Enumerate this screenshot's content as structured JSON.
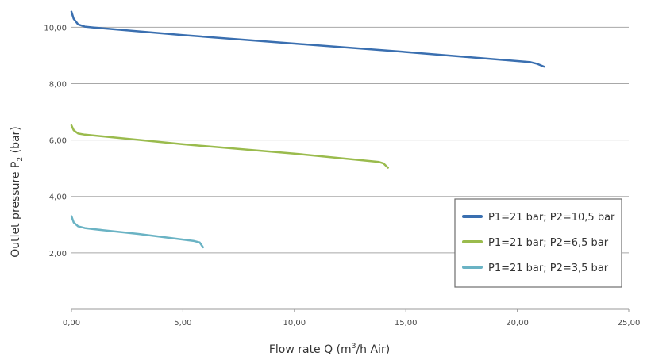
{
  "chart_data": {
    "type": "line",
    "title": "",
    "xlabel": {
      "main": "Flow rate Q (m",
      "sup": "3",
      "rest": "/h Air)"
    },
    "ylabel": {
      "main": "Outlet pressure P",
      "sub": "2",
      "rest": " (bar)"
    },
    "xlim": [
      0,
      25
    ],
    "ylim": [
      0,
      10.6
    ],
    "x_ticks": [
      0,
      5,
      10,
      15,
      20,
      25
    ],
    "x_tick_labels": [
      "0,00",
      "5,00",
      "10,00",
      "15,00",
      "20,00",
      "25,00"
    ],
    "y_ticks": [
      2,
      4,
      6,
      8,
      10
    ],
    "y_tick_labels": [
      "2,00",
      "4,00",
      "6,00",
      "8,00",
      "10,00"
    ],
    "grid": "horizontal",
    "legend_position": "right",
    "series": [
      {
        "name": "P1=21 bar; P2=10,5 bar",
        "color": "#3a6fb0",
        "points": [
          [
            0,
            10.55
          ],
          [
            0.1,
            10.3
          ],
          [
            0.3,
            10.1
          ],
          [
            0.6,
            10.02
          ],
          [
            1,
            9.99
          ],
          [
            5,
            9.72
          ],
          [
            10,
            9.42
          ],
          [
            15,
            9.12
          ],
          [
            20,
            8.8
          ],
          [
            20.6,
            8.76
          ],
          [
            20.9,
            8.7
          ],
          [
            21.2,
            8.6
          ]
        ]
      },
      {
        "name": "P1=21 bar; P2=6,5 bar",
        "color": "#9abb4d",
        "points": [
          [
            0,
            6.52
          ],
          [
            0.1,
            6.35
          ],
          [
            0.3,
            6.23
          ],
          [
            0.6,
            6.19
          ],
          [
            1,
            6.16
          ],
          [
            5,
            5.85
          ],
          [
            10,
            5.52
          ],
          [
            13.8,
            5.22
          ],
          [
            14.0,
            5.17
          ],
          [
            14.2,
            5.02
          ]
        ]
      },
      {
        "name": "P1=21 bar; P2=3,5 bar",
        "color": "#6ab3c4",
        "points": [
          [
            0,
            3.3
          ],
          [
            0.1,
            3.08
          ],
          [
            0.3,
            2.94
          ],
          [
            0.6,
            2.88
          ],
          [
            1,
            2.84
          ],
          [
            3,
            2.67
          ],
          [
            5.5,
            2.42
          ],
          [
            5.75,
            2.37
          ],
          [
            5.9,
            2.2
          ]
        ]
      }
    ]
  }
}
